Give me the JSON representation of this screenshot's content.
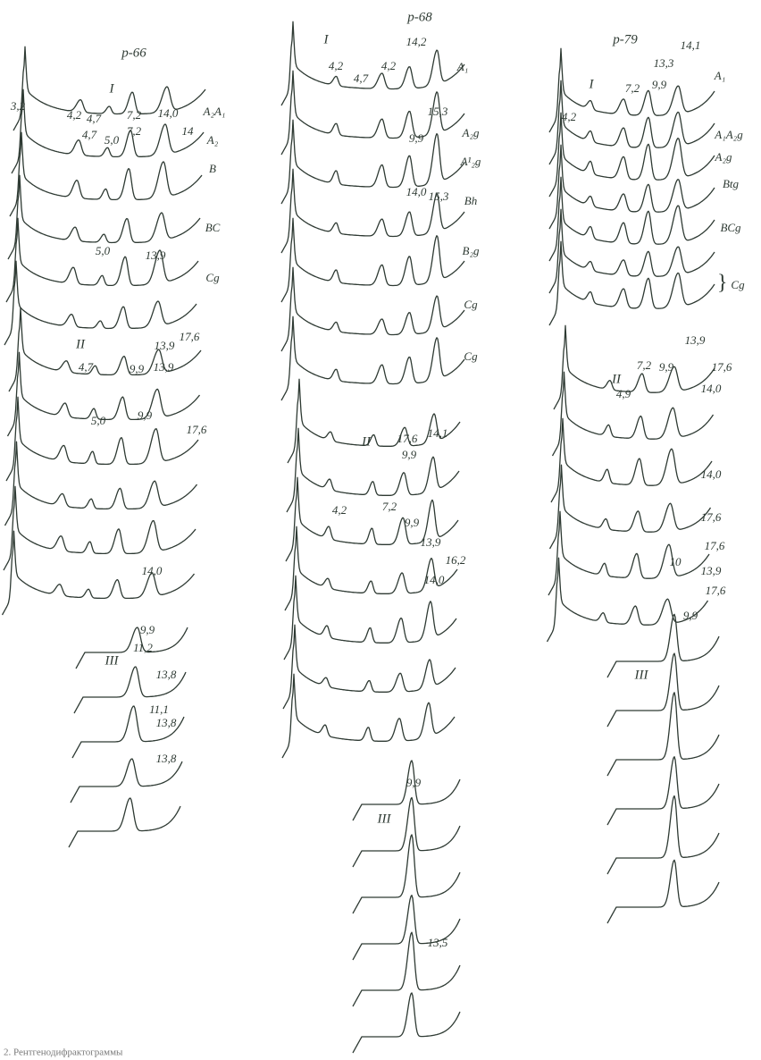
{
  "figure": {
    "panels": [
      {
        "labels": [
          "p-66",
          "I",
          "3,2",
          "4,2",
          "4,7",
          "7,2",
          "14,0",
          "A₂A₁",
          "14",
          "4,7",
          "7,2",
          "5,0",
          "A₂",
          "B",
          "BC",
          "5,0",
          "13,9",
          "Cg",
          "II",
          "17,6",
          "13,9",
          "4,7",
          "9,9",
          "13,9",
          "5,0",
          "9,9",
          "17,6",
          "14,0",
          "III",
          "9,9",
          "11,2",
          "13,8",
          "11,1",
          "13,8",
          "13,8"
        ]
      },
      {
        "labels": [
          "p-68",
          "I",
          "4,2",
          "4,7",
          "4,2",
          "14,2",
          "A₁",
          "15,3",
          "9,9",
          "A₂g",
          "A¹₂g",
          "14,0",
          "15,3",
          "Bh",
          "B₂g",
          "Cg",
          "Cg",
          "II",
          "17,6",
          "14,1",
          "9,9",
          "4,2",
          "7,2",
          "9,9",
          "13,9",
          "16,2",
          "14,0",
          "III",
          "9,9",
          "13,5"
        ]
      },
      {
        "labels": [
          "p-79",
          "I",
          "13,3",
          "14,1",
          "9,9",
          "7,2",
          "4,2",
          "A₁",
          "A₁A₂g",
          "A₂g",
          "Btg",
          "BCg",
          "Cg",
          "II",
          "7,2",
          "9,9",
          "13,9",
          "17,6",
          "4,9",
          "14,0",
          "14,0",
          "17,6",
          "10",
          "17,6",
          "13,9",
          "17,6",
          "III",
          "9,9"
        ]
      }
    ],
    "caption": "2. Рентгенодифрактограммы"
  }
}
